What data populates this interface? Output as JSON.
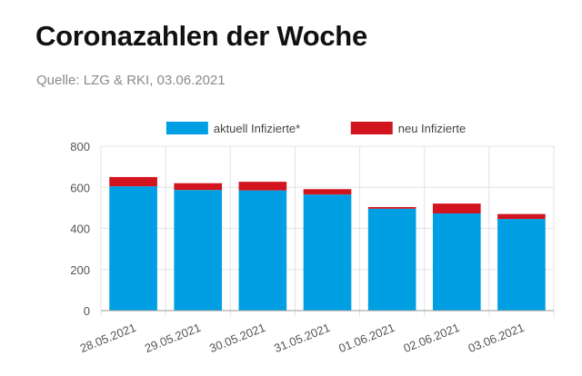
{
  "header": {
    "title": "Coronazahlen der Woche",
    "source": "Quelle: LZG & RKI, 03.06.2021"
  },
  "chart_data": {
    "type": "bar",
    "stacked": true,
    "categories": [
      "28.05.2021",
      "29.05.2021",
      "30.05.2021",
      "31.05.2021",
      "01.06.2021",
      "02.06.2021",
      "03.06.2021"
    ],
    "series": [
      {
        "name": "aktuell Infizierte*",
        "color": "#009fe3",
        "values": [
          605,
          587,
          585,
          565,
          496,
          473,
          446
        ]
      },
      {
        "name": "neu Infizierte",
        "color": "#d2141e",
        "values": [
          45,
          33,
          42,
          26,
          8,
          48,
          24
        ]
      }
    ],
    "ylim": [
      0,
      800
    ],
    "yticks": [
      0,
      200,
      400,
      600,
      800
    ],
    "legend_position": "top-center",
    "grid": true
  }
}
